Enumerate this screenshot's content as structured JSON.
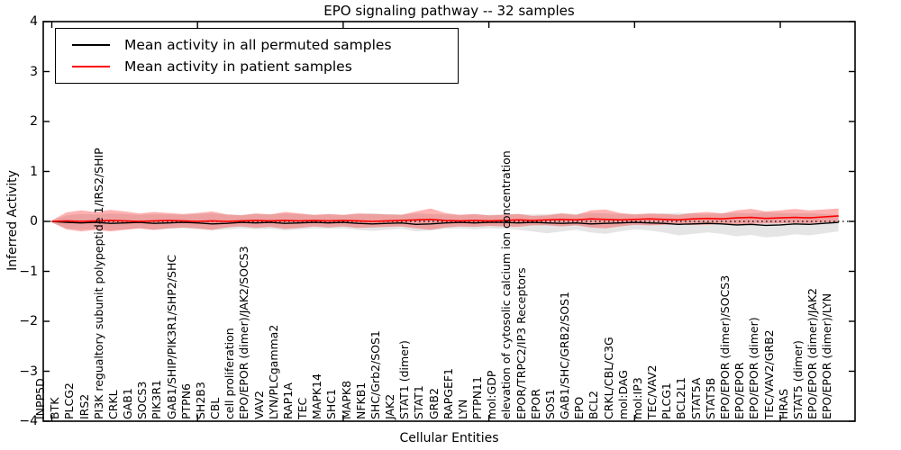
{
  "chart_data": {
    "type": "line",
    "title": "EPO signaling pathway -- 32 samples",
    "xlabel": "Cellular Entities",
    "ylabel": "Inferred Activity",
    "ylim": [
      -4,
      4
    ],
    "ytick_labels": [
      "4",
      "3",
      "2",
      "1",
      "0",
      "−1",
      "−2",
      "−3",
      "−4"
    ],
    "grid": false,
    "legend_position": "upper left",
    "legend": [
      {
        "label": "Mean activity in all permuted samples",
        "color": "#000000"
      },
      {
        "label": "Mean activity in patient samples",
        "color": "#ff0000"
      }
    ],
    "categories": [
      "INPP5D",
      "BTK",
      "PLCG2",
      "IRS2",
      "PI3K regualtory subunit polypeptide 1/IRS2/SHIP",
      "CRKL",
      "GAB1",
      "SOCS3",
      "PIK3R1",
      "GAB1/SHIP/PIK3R1/SHP2/SHC",
      "PTPN6",
      "SH2B3",
      "CBL",
      "cell proliferation",
      "EPO/EPOR (dimer)/JAK2/SOCS3",
      "VAV2",
      "LYN/PLCgamma2",
      "RAP1A",
      "TEC",
      "MAPK14",
      "SHC1",
      "MAPK8",
      "NFKB1",
      "SHC/Grb2/SOS1",
      "JAK2",
      "STAT1 (dimer)",
      "STAT1",
      "GRB2",
      "RAPGEF1",
      "LYN",
      "PTPN11",
      "mol:GDP",
      "elevation of cytosolic calcium ion concentration",
      "EPOR/TRPC2/IP3 Receptors",
      "EPOR",
      "SOS1",
      "GAB1/SHC/GRB2/SOS1",
      "EPO",
      "BCL2",
      "CRKL/CBL/C3G",
      "mol:DAG",
      "mol:IP3",
      "TEC/VAV2",
      "PLCG1",
      "BCL2L1",
      "STAT5A",
      "STAT5B",
      "EPO/EPOR (dimer)/SOCS3",
      "EPO/EPOR",
      "EPO/EPOR (dimer)",
      "TEC/VAV2/GRB2",
      "HRAS",
      "STAT5 (dimer)",
      "EPO/EPOR (dimer)/JAK2",
      "EPO/EPOR (dimer)/LYN"
    ],
    "zero_line": {
      "y": 0,
      "color": "#000000",
      "style": "dotted"
    },
    "series": [
      {
        "name": "Mean activity in all permuted samples",
        "color": "#000000",
        "values": [
          0.0,
          -0.02,
          -0.03,
          -0.02,
          -0.04,
          -0.03,
          -0.02,
          -0.04,
          -0.03,
          -0.02,
          -0.03,
          -0.05,
          -0.04,
          -0.02,
          -0.03,
          -0.02,
          -0.04,
          -0.03,
          -0.02,
          -0.03,
          -0.02,
          -0.04,
          -0.05,
          -0.04,
          -0.03,
          -0.06,
          -0.05,
          -0.03,
          -0.02,
          -0.03,
          -0.02,
          -0.02,
          -0.03,
          -0.02,
          -0.03,
          -0.04,
          -0.03,
          -0.05,
          -0.04,
          -0.03,
          -0.02,
          -0.03,
          -0.04,
          -0.06,
          -0.05,
          -0.04,
          -0.05,
          -0.07,
          -0.06,
          -0.08,
          -0.07,
          -0.05,
          -0.06,
          -0.04,
          -0.02
        ],
        "band": {
          "color": "#aaaaaa",
          "opacity": 0.3,
          "upper": [
            0.02,
            0.12,
            0.15,
            0.14,
            0.16,
            0.15,
            0.13,
            0.15,
            0.14,
            0.13,
            0.15,
            0.16,
            0.14,
            0.13,
            0.15,
            0.14,
            0.16,
            0.15,
            0.13,
            0.14,
            0.13,
            0.15,
            0.16,
            0.15,
            0.14,
            0.16,
            0.15,
            0.14,
            0.13,
            0.14,
            0.13,
            0.14,
            0.15,
            0.14,
            0.15,
            0.16,
            0.15,
            0.17,
            0.16,
            0.15,
            0.14,
            0.15,
            0.16,
            0.17,
            0.16,
            0.15,
            0.16,
            0.17,
            0.16,
            0.18,
            0.17,
            0.16,
            0.17,
            0.15,
            0.13
          ],
          "lower": [
            -0.02,
            -0.14,
            -0.17,
            -0.15,
            -0.18,
            -0.16,
            -0.14,
            -0.17,
            -0.15,
            -0.14,
            -0.16,
            -0.18,
            -0.16,
            -0.14,
            -0.16,
            -0.15,
            -0.18,
            -0.16,
            -0.14,
            -0.15,
            -0.14,
            -0.17,
            -0.19,
            -0.17,
            -0.15,
            -0.2,
            -0.18,
            -0.15,
            -0.14,
            -0.16,
            -0.14,
            -0.15,
            -0.17,
            -0.2,
            -0.24,
            -0.2,
            -0.17,
            -0.22,
            -0.25,
            -0.2,
            -0.16,
            -0.18,
            -0.22,
            -0.28,
            -0.25,
            -0.22,
            -0.25,
            -0.3,
            -0.27,
            -0.32,
            -0.3,
            -0.26,
            -0.28,
            -0.24,
            -0.2
          ]
        }
      },
      {
        "name": "Mean activity in patient samples",
        "color": "#ff0000",
        "values": [
          0.0,
          0.01,
          0.0,
          0.01,
          0.02,
          0.01,
          0.0,
          0.01,
          0.02,
          0.01,
          0.0,
          0.01,
          0.0,
          0.01,
          0.02,
          0.01,
          0.02,
          0.01,
          0.02,
          0.01,
          0.02,
          0.01,
          0.0,
          0.01,
          0.02,
          0.03,
          0.04,
          0.02,
          0.01,
          0.02,
          0.01,
          0.02,
          0.03,
          0.02,
          0.03,
          0.04,
          0.03,
          0.05,
          0.04,
          0.03,
          0.04,
          0.05,
          0.04,
          0.03,
          0.05,
          0.06,
          0.05,
          0.07,
          0.08,
          0.06,
          0.07,
          0.08,
          0.07,
          0.09,
          0.11
        ],
        "band": {
          "color": "#ff0000",
          "opacity": 0.3,
          "upper": [
            0.02,
            0.18,
            0.22,
            0.19,
            0.23,
            0.2,
            0.16,
            0.19,
            0.17,
            0.15,
            0.17,
            0.2,
            0.14,
            0.12,
            0.16,
            0.14,
            0.19,
            0.16,
            0.13,
            0.15,
            0.13,
            0.16,
            0.15,
            0.14,
            0.13,
            0.2,
            0.26,
            0.17,
            0.13,
            0.15,
            0.12,
            0.13,
            0.15,
            0.11,
            0.12,
            0.16,
            0.13,
            0.22,
            0.24,
            0.17,
            0.14,
            0.16,
            0.15,
            0.13,
            0.17,
            0.19,
            0.16,
            0.22,
            0.25,
            0.2,
            0.22,
            0.25,
            0.22,
            0.24,
            0.26
          ],
          "lower": [
            -0.02,
            -0.16,
            -0.2,
            -0.17,
            -0.2,
            -0.17,
            -0.14,
            -0.17,
            -0.14,
            -0.12,
            -0.14,
            -0.17,
            -0.12,
            -0.1,
            -0.13,
            -0.11,
            -0.15,
            -0.13,
            -0.1,
            -0.12,
            -0.1,
            -0.13,
            -0.12,
            -0.11,
            -0.1,
            -0.14,
            -0.17,
            -0.12,
            -0.1,
            -0.11,
            -0.09,
            -0.1,
            -0.11,
            -0.08,
            -0.08,
            -0.1,
            -0.08,
            -0.12,
            -0.14,
            -0.1,
            -0.07,
            -0.08,
            -0.07,
            -0.06,
            -0.07,
            -0.07,
            -0.05,
            -0.06,
            -0.05,
            -0.04,
            -0.04,
            -0.03,
            -0.04,
            -0.02,
            -0.01
          ]
        }
      }
    ]
  }
}
